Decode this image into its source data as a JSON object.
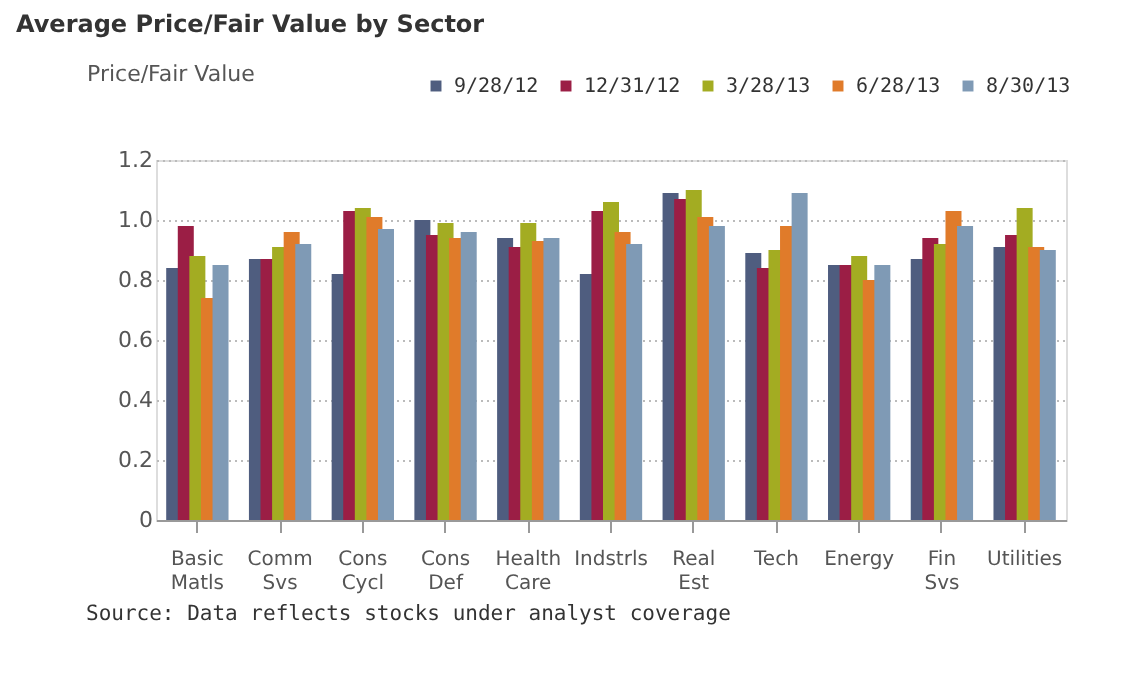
{
  "chart_data": {
    "type": "bar",
    "title": "Average Price/Fair Value by Sector",
    "ylabel": "Price/Fair Value",
    "categories": [
      "Basic Matls",
      "Comm Svs",
      "Cons Cycl",
      "Cons Def",
      "Health Care",
      "Indstrls",
      "Real Est",
      "Tech",
      "Energy",
      "Fin Svs",
      "Utilities"
    ],
    "series": [
      {
        "name": "9/28/12",
        "color": "#4f5d7f",
        "values": [
          0.84,
          0.87,
          0.82,
          1.0,
          0.94,
          0.82,
          1.09,
          0.89,
          0.85,
          0.87,
          0.91
        ]
      },
      {
        "name": "12/31/12",
        "color": "#9b1e45",
        "values": [
          0.98,
          0.87,
          1.03,
          0.95,
          0.91,
          1.03,
          1.07,
          0.84,
          0.85,
          0.94,
          0.95
        ]
      },
      {
        "name": "3/28/13",
        "color": "#a3ac22",
        "values": [
          0.88,
          0.91,
          1.04,
          0.99,
          0.99,
          1.06,
          1.1,
          0.9,
          0.88,
          0.92,
          1.04
        ]
      },
      {
        "name": "6/28/13",
        "color": "#e07b2a",
        "values": [
          0.74,
          0.96,
          1.01,
          0.94,
          0.93,
          0.96,
          1.01,
          0.98,
          0.8,
          1.03,
          0.91
        ]
      },
      {
        "name": "8/30/13",
        "color": "#7f9ab5",
        "values": [
          0.85,
          0.92,
          0.97,
          0.96,
          0.94,
          0.92,
          0.98,
          1.09,
          0.85,
          0.98,
          0.9
        ]
      }
    ],
    "ylim": [
      0,
      1.2
    ],
    "yticks": [
      0,
      0.2,
      0.4,
      0.6,
      0.8,
      {
        "value": 1,
        "label": "1.0"
      },
      1.2
    ],
    "grid": "y",
    "legend": "top right",
    "annotations": [
      "Source: Data reflects stocks under analyst coverage"
    ]
  }
}
